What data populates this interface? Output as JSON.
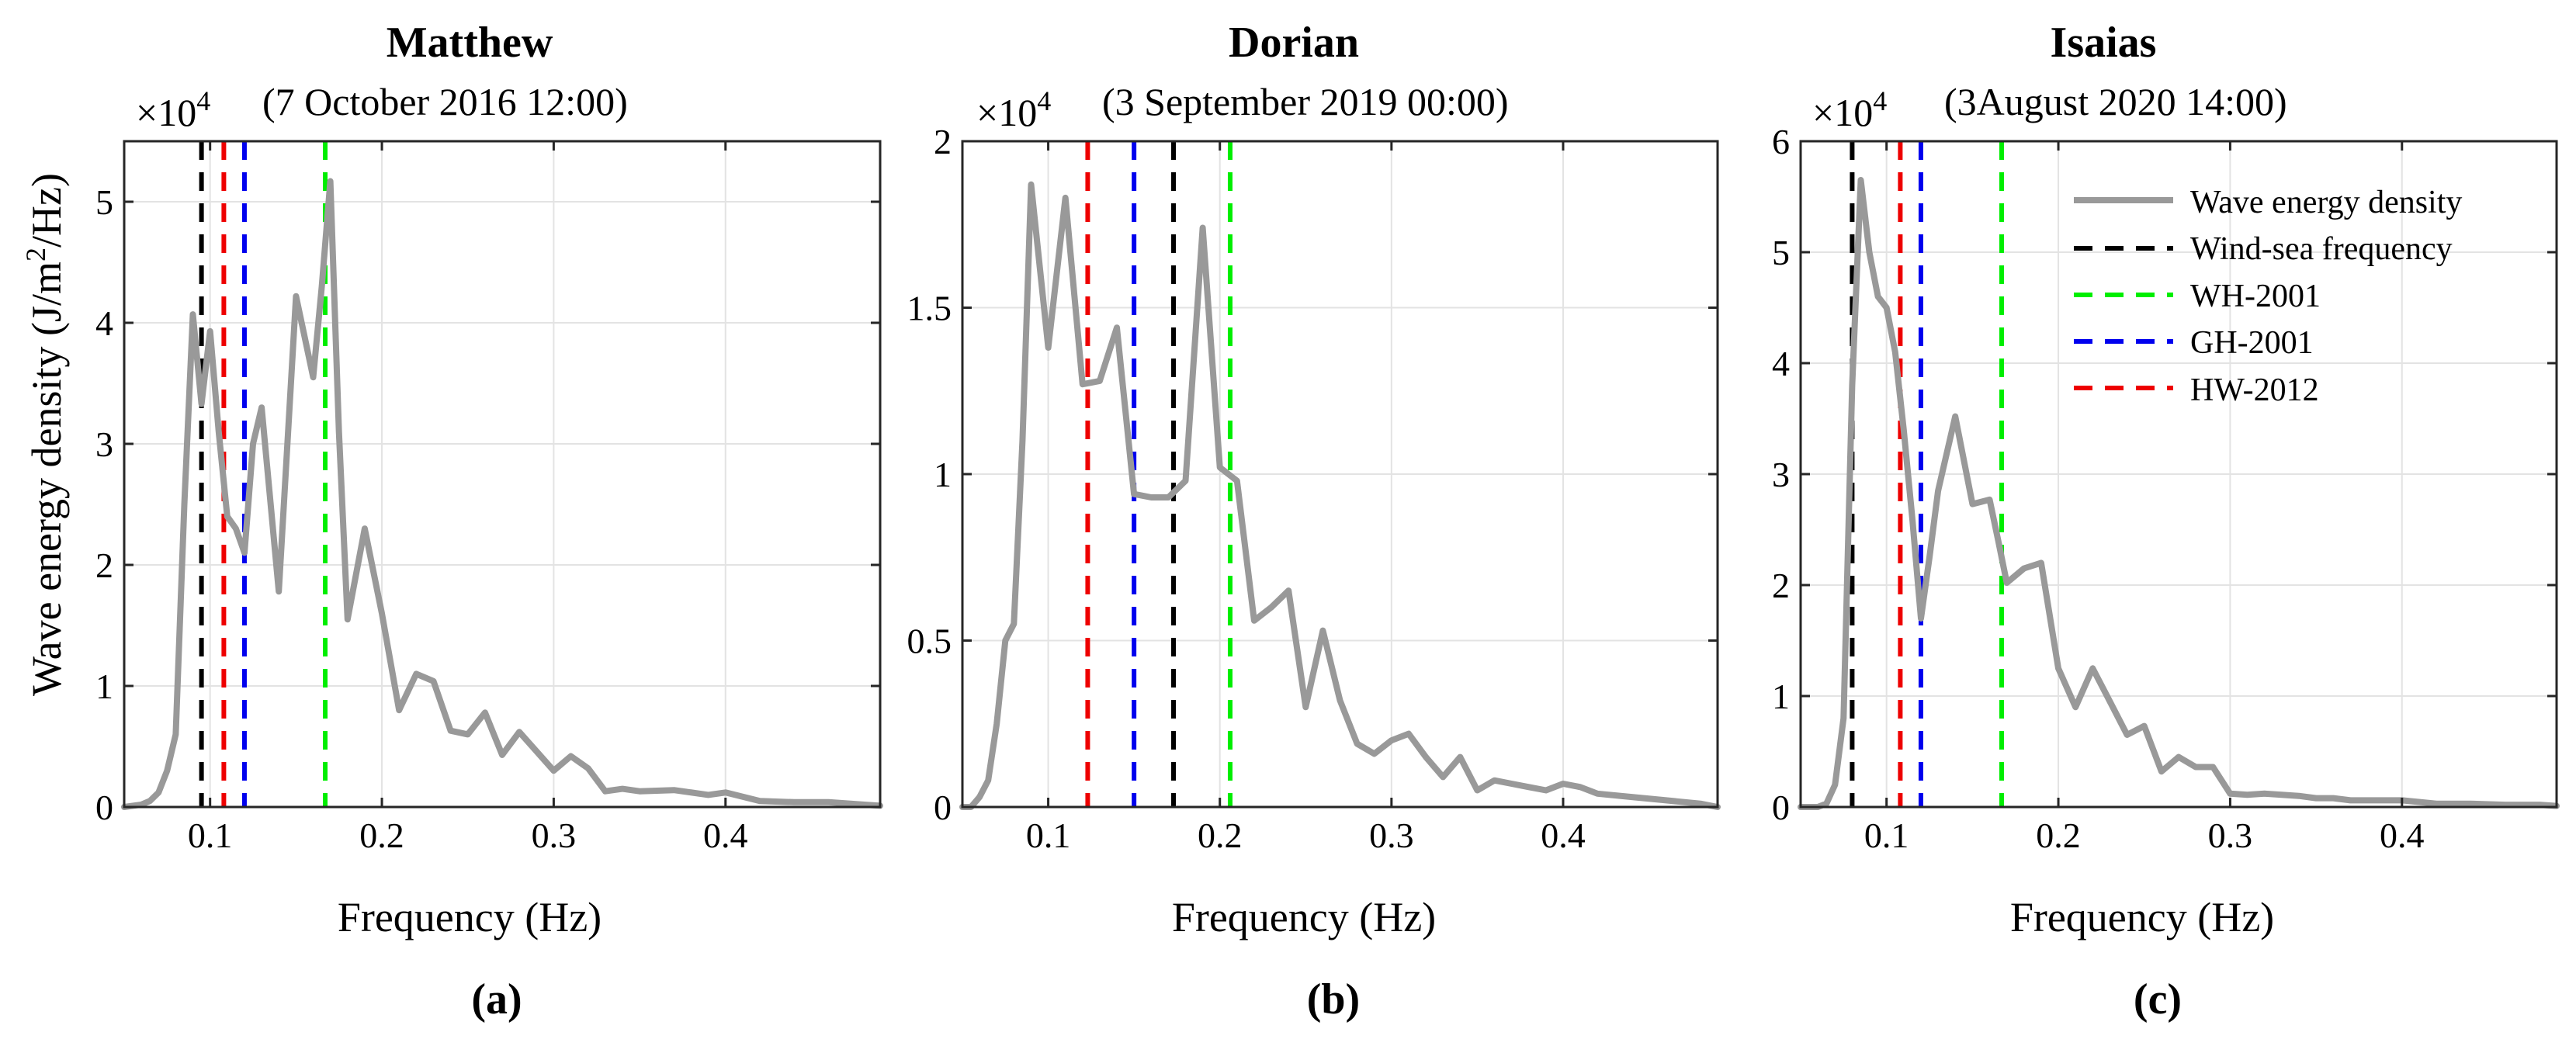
{
  "figure": {
    "ylabel": "Wave energy density (J/m",
    "ylabel_sup": "2",
    "ylabel_end": "/Hz)",
    "scale_base": "×10",
    "scale_exp": "4",
    "colors": {
      "spectrum": "#999999",
      "wind_sea": "#000000",
      "wh2001": "#00ee00",
      "gh2001": "#0000ee",
      "hw2012": "#ee0000",
      "grid": "#e3e3e3",
      "axis": "#262626"
    }
  },
  "legend": {
    "entries": [
      {
        "label": "Wave energy density",
        "key": "spectrum"
      },
      {
        "label": "Wind-sea frequency",
        "key": "wind_sea"
      },
      {
        "label": "WH-2001",
        "key": "wh2001"
      },
      {
        "label": "GH-2001",
        "key": "gh2001"
      },
      {
        "label": "HW-2012",
        "key": "hw2012"
      }
    ]
  },
  "chart_data": [
    {
      "type": "line",
      "panel_label": "(a)",
      "title": "Matthew",
      "subtitle": "(7 October 2016 12:00)",
      "xlabel": "Frequency (Hz)",
      "ylabel": "Wave energy density (J/m2/Hz)",
      "xlim": [
        0.05,
        0.49
      ],
      "ylim": [
        0,
        5.5
      ],
      "xticks": [
        0.1,
        0.2,
        0.3,
        0.4
      ],
      "xtick_labels": [
        "0.1",
        "0.2",
        "0.3",
        "0.4"
      ],
      "yticks": [
        0,
        1,
        2,
        3,
        4,
        5
      ],
      "ytick_labels": [
        "0",
        "1",
        "2",
        "3",
        "4",
        "5"
      ],
      "y_scale_factor": "×10^4",
      "grid": true,
      "series": [
        {
          "name": "Wave energy density",
          "x": [
            0.05,
            0.06,
            0.065,
            0.07,
            0.075,
            0.08,
            0.085,
            0.09,
            0.095,
            0.1,
            0.105,
            0.11,
            0.115,
            0.12,
            0.125,
            0.13,
            0.14,
            0.15,
            0.16,
            0.165,
            0.17,
            0.175,
            0.18,
            0.19,
            0.2,
            0.21,
            0.22,
            0.23,
            0.24,
            0.25,
            0.26,
            0.27,
            0.28,
            0.3,
            0.31,
            0.32,
            0.33,
            0.34,
            0.35,
            0.37,
            0.39,
            0.4,
            0.42,
            0.44,
            0.46,
            0.48,
            0.49
          ],
          "y": [
            0.0,
            0.02,
            0.05,
            0.12,
            0.3,
            0.6,
            2.5,
            4.07,
            3.33,
            3.93,
            3.1,
            2.4,
            2.3,
            2.1,
            3.0,
            3.3,
            1.78,
            4.22,
            3.55,
            4.3,
            5.17,
            3.1,
            1.55,
            2.3,
            1.6,
            0.8,
            1.1,
            1.04,
            0.63,
            0.6,
            0.78,
            0.43,
            0.62,
            0.3,
            0.42,
            0.32,
            0.13,
            0.15,
            0.13,
            0.14,
            0.1,
            0.12,
            0.05,
            0.04,
            0.04,
            0.02,
            0.01
          ]
        }
      ],
      "vlines": [
        {
          "name": "Wind-sea frequency",
          "x": 0.095,
          "key": "wind_sea"
        },
        {
          "name": "HW-2012",
          "x": 0.108,
          "key": "hw2012"
        },
        {
          "name": "GH-2001",
          "x": 0.12,
          "key": "gh2001"
        },
        {
          "name": "WH-2001",
          "x": 0.167,
          "key": "wh2001"
        }
      ]
    },
    {
      "type": "line",
      "panel_label": "(b)",
      "title": "Dorian",
      "subtitle": "(3 September 2019 00:00)",
      "xlabel": "Frequency (Hz)",
      "ylabel": "",
      "xlim": [
        0.05,
        0.49
      ],
      "ylim": [
        0,
        2
      ],
      "xticks": [
        0.1,
        0.2,
        0.3,
        0.4
      ],
      "xtick_labels": [
        "0.1",
        "0.2",
        "0.3",
        "0.4"
      ],
      "yticks": [
        0,
        0.5,
        1,
        1.5,
        2
      ],
      "ytick_labels": [
        "0",
        "0.5",
        "1",
        "1.5",
        "2"
      ],
      "y_scale_factor": "×10^4",
      "grid": true,
      "series": [
        {
          "name": "Wave energy density",
          "x": [
            0.05,
            0.055,
            0.06,
            0.065,
            0.07,
            0.075,
            0.08,
            0.085,
            0.09,
            0.1,
            0.11,
            0.12,
            0.13,
            0.14,
            0.15,
            0.16,
            0.17,
            0.18,
            0.19,
            0.2,
            0.21,
            0.22,
            0.23,
            0.24,
            0.25,
            0.26,
            0.27,
            0.28,
            0.29,
            0.3,
            0.31,
            0.32,
            0.33,
            0.34,
            0.35,
            0.36,
            0.37,
            0.38,
            0.39,
            0.4,
            0.41,
            0.42,
            0.44,
            0.46,
            0.48,
            0.49
          ],
          "y": [
            0.0,
            0.0,
            0.03,
            0.08,
            0.25,
            0.5,
            0.55,
            1.1,
            1.87,
            1.38,
            1.83,
            1.27,
            1.28,
            1.44,
            0.94,
            0.93,
            0.93,
            0.98,
            1.74,
            1.02,
            0.98,
            0.56,
            0.6,
            0.65,
            0.3,
            0.53,
            0.32,
            0.19,
            0.16,
            0.2,
            0.22,
            0.15,
            0.09,
            0.15,
            0.05,
            0.08,
            0.07,
            0.06,
            0.05,
            0.07,
            0.06,
            0.04,
            0.03,
            0.02,
            0.01,
            0.0
          ]
        }
      ],
      "vlines": [
        {
          "name": "HW-2012",
          "x": 0.123,
          "key": "hw2012"
        },
        {
          "name": "GH-2001",
          "x": 0.15,
          "key": "gh2001"
        },
        {
          "name": "Wind-sea frequency",
          "x": 0.173,
          "key": "wind_sea"
        },
        {
          "name": "WH-2001",
          "x": 0.206,
          "key": "wh2001"
        }
      ]
    },
    {
      "type": "line",
      "panel_label": "(c)",
      "title": "Isaias",
      "subtitle": "(3August 2020 14:00)",
      "xlabel": "Frequency (Hz)",
      "ylabel": "",
      "xlim": [
        0.05,
        0.49
      ],
      "ylim": [
        0,
        6
      ],
      "xticks": [
        0.1,
        0.2,
        0.3,
        0.4
      ],
      "xtick_labels": [
        "0.1",
        "0.2",
        "0.3",
        "0.4"
      ],
      "yticks": [
        0,
        1,
        2,
        3,
        4,
        5,
        6
      ],
      "ytick_labels": [
        "0",
        "1",
        "2",
        "3",
        "4",
        "5",
        "6"
      ],
      "y_scale_factor": "×10^4",
      "grid": true,
      "legend_position": "top-right",
      "series": [
        {
          "name": "Wave energy density",
          "x": [
            0.05,
            0.06,
            0.065,
            0.07,
            0.075,
            0.08,
            0.085,
            0.09,
            0.095,
            0.1,
            0.105,
            0.11,
            0.115,
            0.12,
            0.125,
            0.13,
            0.14,
            0.15,
            0.16,
            0.165,
            0.17,
            0.18,
            0.19,
            0.2,
            0.21,
            0.22,
            0.23,
            0.24,
            0.25,
            0.26,
            0.27,
            0.28,
            0.29,
            0.3,
            0.31,
            0.32,
            0.33,
            0.34,
            0.35,
            0.36,
            0.37,
            0.38,
            0.39,
            0.4,
            0.42,
            0.44,
            0.46,
            0.48,
            0.49
          ],
          "y": [
            0.0,
            0.0,
            0.03,
            0.2,
            0.8,
            3.8,
            5.65,
            5.0,
            4.6,
            4.5,
            4.1,
            3.4,
            2.6,
            1.7,
            2.25,
            2.85,
            3.52,
            2.73,
            2.77,
            2.4,
            2.02,
            2.15,
            2.2,
            1.25,
            0.9,
            1.25,
            0.95,
            0.65,
            0.73,
            0.32,
            0.45,
            0.36,
            0.36,
            0.12,
            0.11,
            0.12,
            0.11,
            0.1,
            0.08,
            0.08,
            0.06,
            0.06,
            0.06,
            0.06,
            0.03,
            0.03,
            0.02,
            0.02,
            0.01
          ]
        }
      ],
      "vlines": [
        {
          "name": "Wind-sea frequency",
          "x": 0.08,
          "key": "wind_sea"
        },
        {
          "name": "HW-2012",
          "x": 0.108,
          "key": "hw2012"
        },
        {
          "name": "GH-2001",
          "x": 0.12,
          "key": "gh2001"
        },
        {
          "name": "WH-2001",
          "x": 0.167,
          "key": "wh2001"
        }
      ]
    }
  ]
}
